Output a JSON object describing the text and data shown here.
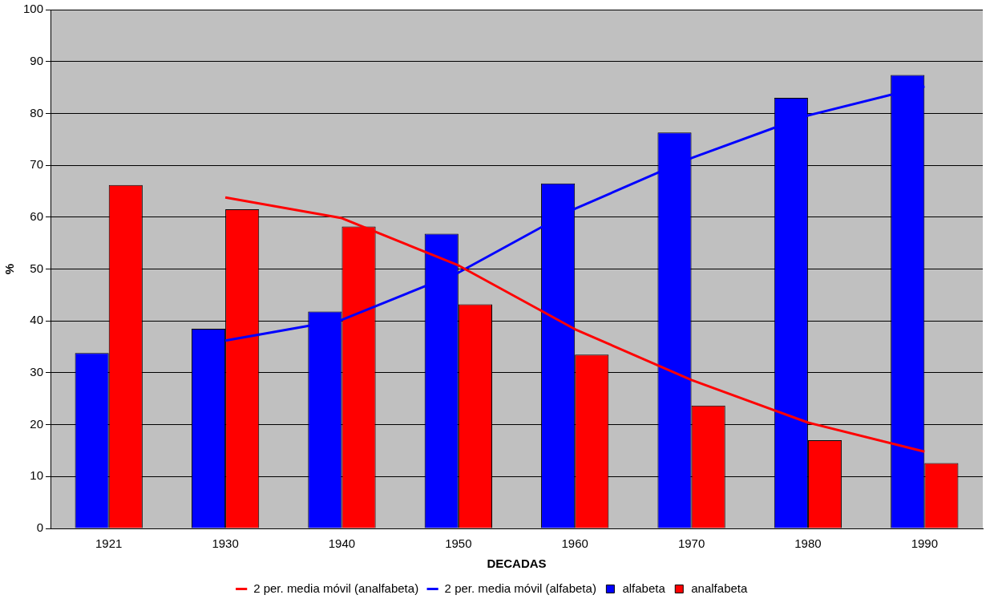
{
  "chart_data": {
    "type": "bar",
    "xlabel": "DECADAS",
    "ylabel": "%",
    "categories": [
      "1921",
      "1930",
      "1940",
      "1950",
      "1960",
      "1970",
      "1980",
      "1990"
    ],
    "series": [
      {
        "name": "alfabeta",
        "color": "#0000ff",
        "values": [
          33.8,
          38.5,
          41.8,
          56.8,
          66.5,
          76.3,
          83.0,
          87.4
        ]
      },
      {
        "name": "analfabeta",
        "color": "#ff0000",
        "values": [
          66.2,
          61.5,
          58.2,
          43.2,
          33.5,
          23.7,
          17.0,
          12.6
        ]
      },
      {
        "name": "2 per. media móvil (analfabeta)",
        "type": "line",
        "color": "#ff0000",
        "values": [
          null,
          63.8,
          59.8,
          50.7,
          38.4,
          28.6,
          20.4,
          14.8
        ]
      },
      {
        "name": "2 per. media móvil (alfabeta)",
        "type": "line",
        "color": "#0000ff",
        "values": [
          null,
          36.2,
          40.2,
          49.3,
          61.6,
          71.4,
          79.6,
          85.2
        ]
      }
    ],
    "ylim": [
      0,
      100
    ],
    "yticks": [
      0,
      10,
      20,
      30,
      40,
      50,
      60,
      70,
      80,
      90,
      100
    ],
    "grid": "y",
    "legend": "bottom",
    "marker": "none",
    "line_style": "solid"
  }
}
